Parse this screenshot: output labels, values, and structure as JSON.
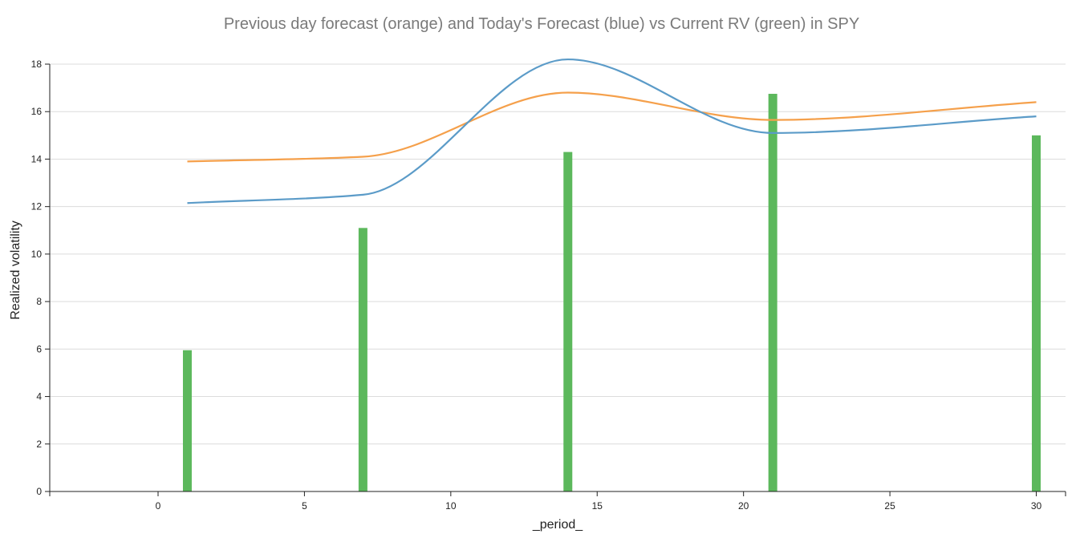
{
  "chart_data": {
    "type": "line",
    "title": "Previous day forecast (orange) and Today's Forecast (blue) vs Current RV (green) in SPY",
    "xlabel": "_period_",
    "ylabel": "Realized volatility",
    "xlim": [
      -3.7,
      31.0
    ],
    "ylim": [
      0,
      18.0
    ],
    "x_ticks": [
      0,
      5,
      10,
      15,
      20,
      25,
      30
    ],
    "y_ticks": [
      0,
      2,
      4,
      6,
      8,
      10,
      12,
      14,
      16,
      18
    ],
    "grid": "horizontal",
    "legend": "none",
    "colors": {
      "orange": "#f5a04b",
      "blue": "#5b9bc8",
      "green": "#5cb85c"
    },
    "series": [
      {
        "kind": "line",
        "color": "orange",
        "x": [
          1,
          7,
          14,
          21,
          30
        ],
        "values": [
          13.9,
          14.1,
          16.8,
          15.65,
          16.4
        ]
      },
      {
        "kind": "line",
        "color": "blue",
        "x": [
          1,
          7,
          14,
          21,
          30
        ],
        "values": [
          12.15,
          12.5,
          18.2,
          15.1,
          15.8
        ]
      },
      {
        "kind": "bar",
        "color": "green",
        "x": [
          1,
          7,
          14,
          21,
          30
        ],
        "values": [
          5.95,
          11.1,
          14.3,
          16.75,
          15.0
        ]
      }
    ]
  }
}
